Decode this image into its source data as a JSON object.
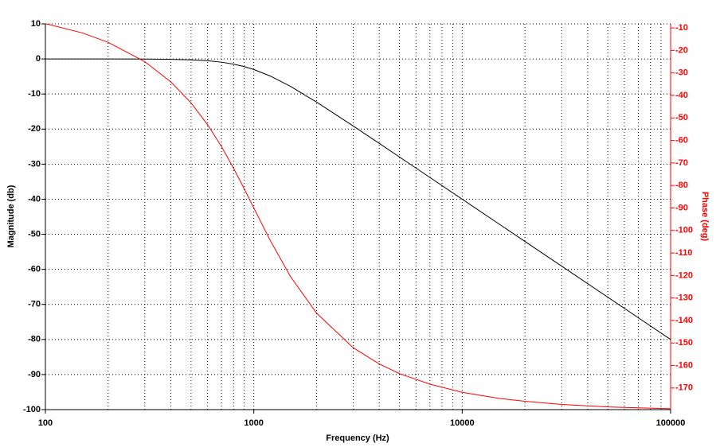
{
  "chart_data": {
    "type": "line",
    "x_label": "Frequency (Hz)",
    "y_label": "Magnitude (db)",
    "y2_label": "Phase (deg)",
    "xscale": "log",
    "grid": true,
    "xlim": [
      100,
      100000
    ],
    "xticks": [
      100,
      1000,
      10000,
      100000
    ],
    "xminorticks": [
      200,
      300,
      400,
      500,
      600,
      700,
      800,
      900,
      2000,
      3000,
      4000,
      5000,
      6000,
      7000,
      8000,
      9000,
      20000,
      30000,
      40000,
      50000,
      60000,
      70000,
      80000,
      90000
    ],
    "ylim": [
      -100,
      10
    ],
    "yticks": [
      10,
      0,
      -10,
      -20,
      -30,
      -40,
      -50,
      -60,
      -70,
      -80,
      -90,
      -100
    ],
    "y2lim": [
      -179.6,
      -8.2
    ],
    "y2ticks": [
      -10,
      -20,
      -30,
      -40,
      -50,
      -60,
      -70,
      -80,
      -90,
      -100,
      -110,
      -120,
      -130,
      -140,
      -150,
      -160,
      -170
    ],
    "y2color": "#ff0000",
    "x": [
      100,
      150,
      200,
      300,
      400,
      500,
      600,
      700,
      800,
      900,
      1000,
      1200,
      1500,
      2000,
      3000,
      4000,
      5000,
      7000,
      10000,
      15000,
      20000,
      30000,
      50000,
      70000,
      100000
    ],
    "series": [
      {
        "color": "#000000",
        "values": [
          0.0,
          0.0,
          -0.01,
          -0.04,
          -0.11,
          -0.26,
          -0.53,
          -0.93,
          -1.49,
          -2.19,
          -3.01,
          -4.88,
          -7.83,
          -12.3,
          -19.14,
          -24.1,
          -27.96,
          -33.8,
          -40.0,
          -47.04,
          -52.04,
          -59.08,
          -67.96,
          -73.8,
          -80.0
        ]
      },
      {
        "color": "#ff0000",
        "axis": "y2",
        "values": [
          -8.1,
          -12.2,
          -16.4,
          -25.0,
          -34.0,
          -43.3,
          -53.0,
          -62.7,
          -72.4,
          -81.5,
          -90.0,
          -104.5,
          -120.5,
          -136.7,
          -152.1,
          -159.3,
          -163.6,
          -168.3,
          -171.9,
          -174.6,
          -175.9,
          -177.3,
          -178.4,
          -178.8,
          -179.2
        ]
      }
    ]
  }
}
